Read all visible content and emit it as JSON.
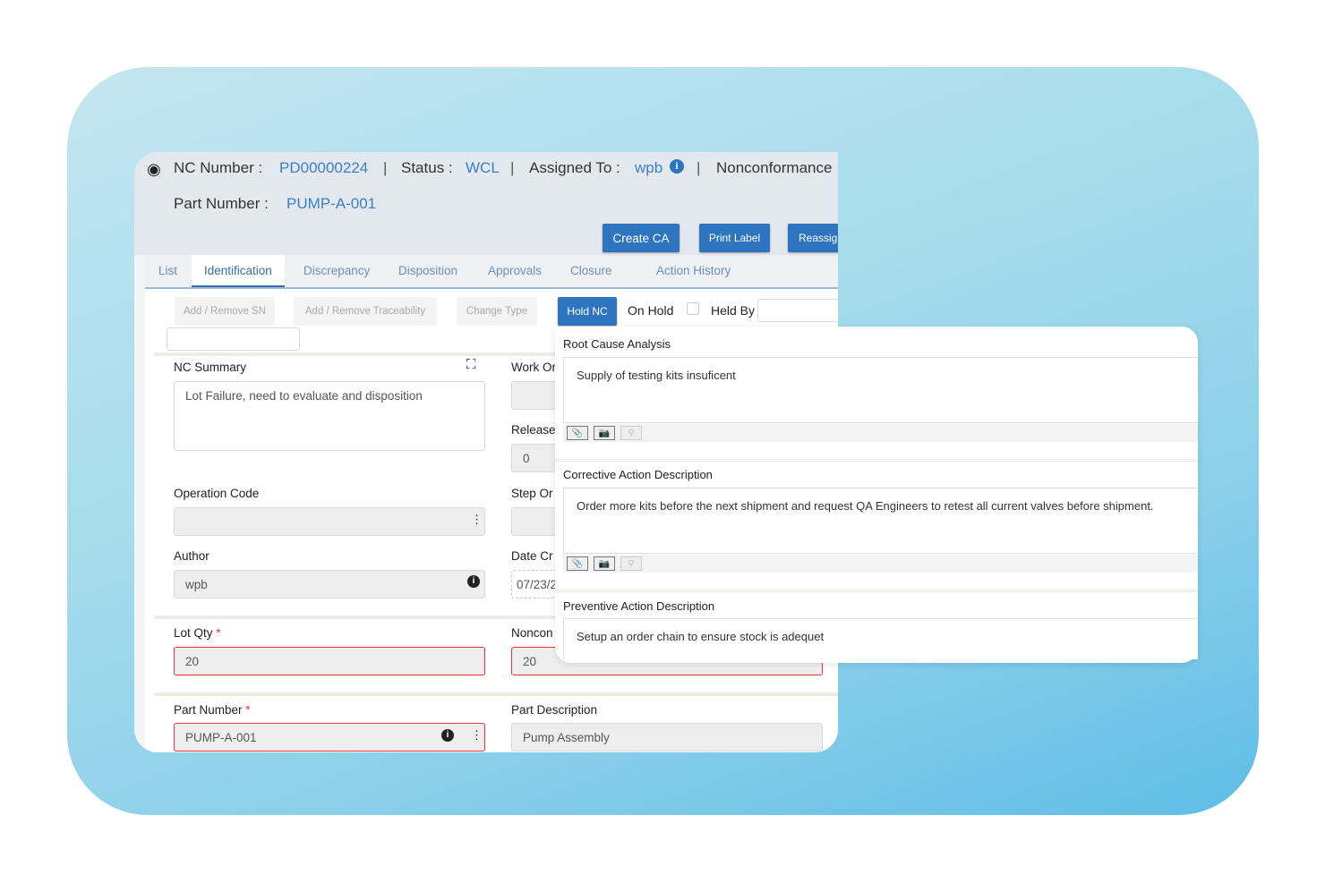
{
  "header": {
    "nc_number_label": "NC Number :",
    "nc_number": "PD00000224",
    "status_label": "Status :",
    "status": "WCL",
    "assigned_label": "Assigned To :",
    "assigned": "wpb",
    "type_label": "Nonconformance",
    "part_number_label": "Part Number :",
    "part_number": "PUMP-A-001",
    "separator": "|",
    "buttons": {
      "create_ca": "Create CA",
      "print_label": "Print Label",
      "reassign": "Reassign"
    }
  },
  "tabs": [
    "List",
    "Identification",
    "Discrepancy",
    "Disposition",
    "Approvals",
    "Closure",
    "Action History"
  ],
  "active_tab": "Identification",
  "toolbar": {
    "add_sn": "Add / Remove SN",
    "add_trace": "Add / Remove Traceability",
    "change_type": "Change Type",
    "hold_nc": "Hold NC",
    "on_hold": "On Hold",
    "held_by": "Held By",
    "held_by_value": ""
  },
  "form": {
    "nc_summary_label": "NC Summary",
    "nc_summary": "Lot Failure, need to evaluate and disposition",
    "operation_code_label": "Operation Code",
    "operation_code": "",
    "author_label": "Author",
    "author": "wpb",
    "work_order_label": "Work Or",
    "release_label": "Release",
    "release": "0",
    "step_label": "Step Or",
    "date_label": "Date Cr",
    "date": "07/23/2",
    "lot_qty_label": "Lot Qty",
    "lot_qty": "20",
    "noncon_label": "Noncon",
    "noncon_qty": "20",
    "part_number_label": "Part Number",
    "part_number": "PUMP-A-001",
    "part_desc_label": "Part Description",
    "part_desc": "Pump Assembly",
    "required_mark": "*"
  },
  "panel": {
    "root_cause_label": "Root Cause Analysis",
    "root_cause": "Supply of testing kits insuficent",
    "corrective_label": "Corrective Action Description",
    "corrective": "Order more kits before the next shipment and request QA Engineers to retest all current valves before shipment.",
    "preventive_label": "Preventive Action Description",
    "preventive": "Setup an order chain to ensure stock is adequet"
  },
  "colors": {
    "accent": "#2e74bf",
    "link": "#3d7fc4",
    "required": "#e33333"
  }
}
